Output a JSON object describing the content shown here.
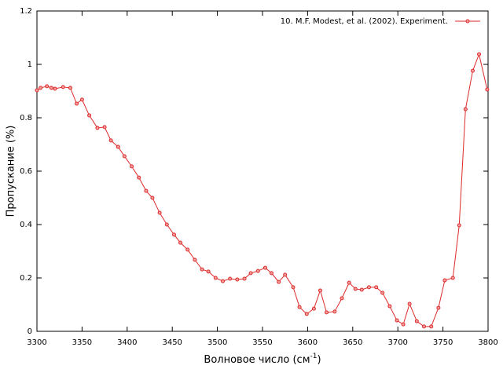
{
  "chart_data": {
    "type": "line",
    "ylabel": "Пропускание (%)",
    "xlabel_parts": [
      "Волновое число (см",
      "-1",
      ")"
    ],
    "x": [
      3300,
      3304,
      3311,
      3316,
      3320,
      3329,
      3337,
      3344,
      3350,
      3358,
      3367,
      3375,
      3382,
      3390,
      3397,
      3405,
      3413,
      3421,
      3428,
      3436,
      3444,
      3452,
      3459,
      3467,
      3475,
      3483,
      3490,
      3498,
      3506,
      3514,
      3522,
      3530,
      3537,
      3545,
      3553,
      3560,
      3568,
      3575,
      3584,
      3591,
      3599,
      3607,
      3614,
      3621,
      3630,
      3638,
      3646,
      3653,
      3660,
      3668,
      3676,
      3683,
      3691,
      3699,
      3706,
      3713,
      3721,
      3729,
      3737,
      3745,
      3752,
      3761,
      3768,
      3775,
      3783,
      3790,
      3799
    ],
    "series": [
      {
        "name": "10. M.F. Modest, et al. (2002). Experiment.",
        "color": "#dd2a2a",
        "values": [
          0.903,
          0.912,
          0.918,
          0.912,
          0.909,
          0.915,
          0.912,
          0.853,
          0.868,
          0.809,
          0.762,
          0.765,
          0.715,
          0.691,
          0.656,
          0.618,
          0.576,
          0.526,
          0.5,
          0.444,
          0.4,
          0.362,
          0.332,
          0.306,
          0.268,
          0.232,
          0.224,
          0.2,
          0.188,
          0.197,
          0.194,
          0.197,
          0.218,
          0.226,
          0.238,
          0.218,
          0.185,
          0.212,
          0.165,
          0.091,
          0.065,
          0.085,
          0.153,
          0.071,
          0.074,
          0.124,
          0.182,
          0.159,
          0.156,
          0.165,
          0.165,
          0.144,
          0.094,
          0.041,
          0.026,
          0.103,
          0.038,
          0.018,
          0.018,
          0.088,
          0.191,
          0.2,
          0.397,
          0.832,
          0.976,
          1.038,
          0.906
        ]
      }
    ],
    "xlim": [
      3300,
      3800
    ],
    "xticks": [
      3300,
      3350,
      3400,
      3450,
      3500,
      3550,
      3600,
      3650,
      3700,
      3750,
      3800
    ],
    "ylim": [
      0,
      1.2
    ],
    "yticks": [
      0,
      0.2,
      0.4,
      0.6,
      0.8,
      1,
      1.2
    ],
    "grid": false,
    "legend": "top-right"
  }
}
